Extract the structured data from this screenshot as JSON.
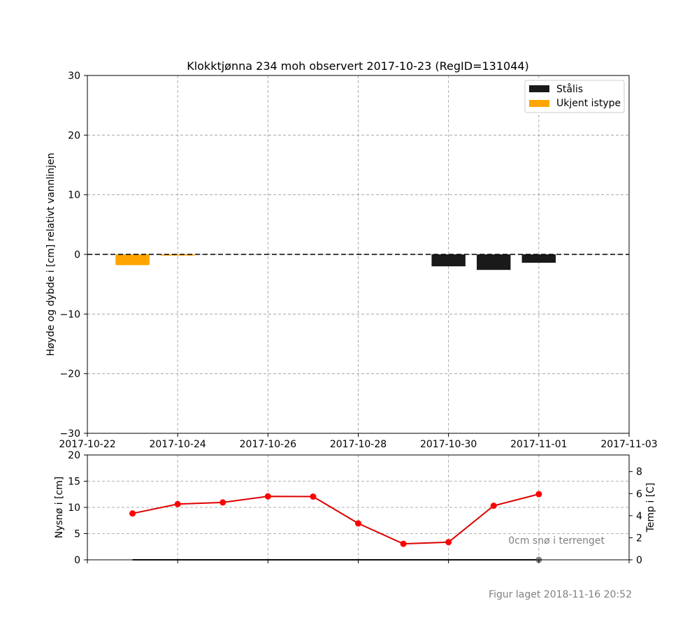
{
  "chart_data": [
    {
      "type": "bar",
      "title": "Klokktjønna 234 moh observert 2017-10-23 (RegID=131044)",
      "ylabel": "Høyde og dybde i [cm] relativt vannlinjen",
      "xlabel": "",
      "ylim": [
        -30,
        30
      ],
      "yticks": [
        "30",
        "20",
        "10",
        "0",
        "−10",
        "−20",
        "−30"
      ],
      "xlim": [
        "2017-10-22",
        "2017-11-03"
      ],
      "xticks": [
        "2017-10-22",
        "2017-10-24",
        "2017-10-26",
        "2017-10-28",
        "2017-10-30",
        "2017-11-01",
        "2017-11-03"
      ],
      "grid": true,
      "legend_position": "top-right",
      "zero_line": 0,
      "series": [
        {
          "name": "Stålis",
          "color": "#1a1a1a",
          "bars": [
            {
              "date": "2017-10-30",
              "top": 0,
              "bottom": -2.0
            },
            {
              "date": "2017-10-31",
              "top": 0,
              "bottom": -2.6
            },
            {
              "date": "2017-11-01",
              "top": 0,
              "bottom": -1.4
            }
          ]
        },
        {
          "name": "Ukjent istype",
          "color": "#ffa500",
          "bars": [
            {
              "date": "2017-10-23",
              "top": 0,
              "bottom": -1.8
            },
            {
              "date": "2017-10-24",
              "top": 0,
              "bottom": -0.2
            }
          ]
        }
      ]
    },
    {
      "type": "line",
      "ylabel": "Nysnø i [cm]",
      "y2label": "Temp i [C]",
      "ylim": [
        0,
        20
      ],
      "yticks": [
        "0",
        "5",
        "10",
        "15",
        "20"
      ],
      "y2lim": [
        0,
        9.5
      ],
      "y2ticks": [
        "0",
        "2",
        "4",
        "6",
        "8"
      ],
      "grid": true,
      "annotation": "0cm snø i terrenget",
      "series": [
        {
          "color": "#dd0000",
          "axis": "right",
          "x": [
            "2017-10-23",
            "2017-10-24",
            "2017-10-25",
            "2017-10-26",
            "2017-10-27",
            "2017-10-28",
            "2017-10-29",
            "2017-10-30",
            "2017-10-31",
            "2017-11-01"
          ],
          "values": [
            4.2,
            5.05,
            5.2,
            5.75,
            5.73,
            3.3,
            1.45,
            1.6,
            4.9,
            5.95
          ]
        },
        {
          "color": "#1a1a1a",
          "axis": "left",
          "x": [
            "2017-10-23",
            "2017-11-01"
          ],
          "values": [
            0,
            0
          ]
        },
        {
          "color": "#808080",
          "axis": "left",
          "x": [
            "2017-11-01"
          ],
          "values": [
            0
          ]
        }
      ]
    }
  ],
  "footer": "Figur laget 2018-11-16 20:52",
  "colors": {
    "grid": "#999999",
    "footer_text": "#808080",
    "legend_border": "#cccccc"
  }
}
